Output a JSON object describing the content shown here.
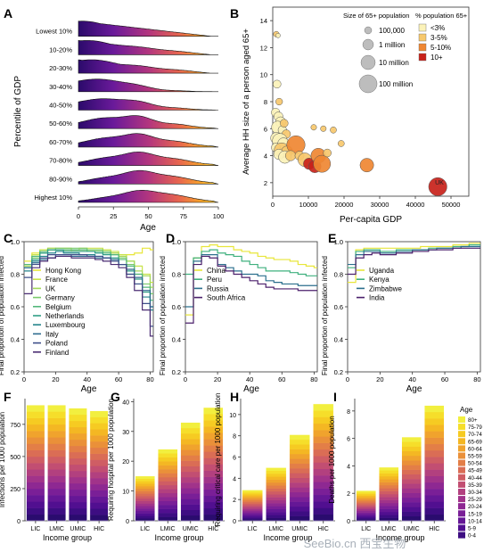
{
  "colors": {
    "ridge_low": "#2b0a6b",
    "ridge_high": "#f9d13a",
    "series_A": [
      "#e8e63a",
      "#c9e34a",
      "#a3d85a",
      "#7acb6b",
      "#53b77a",
      "#2f9e86",
      "#25848c",
      "#2d6a8e",
      "#3e4f8a",
      "#4b2d73"
    ],
    "series_D": [
      "#e8e63a",
      "#3fb07e",
      "#2b6f8d",
      "#4b1f6b"
    ],
    "series_E": [
      "#e8e63a",
      "#3fb07e",
      "#2b6f8d",
      "#4b1f6b"
    ],
    "bubble_cat": [
      "#fbf2b8",
      "#f7c86c",
      "#ef8732",
      "#c8221a"
    ],
    "age_bands": [
      "#2a0c6e",
      "#3d0d82",
      "#510f90",
      "#651796",
      "#7a1f97",
      "#8e2892",
      "#a1338a",
      "#b2407f",
      "#c24e72",
      "#cf5d64",
      "#da6d55",
      "#e37e47",
      "#ea9039",
      "#f0a32d",
      "#f4b723",
      "#f6cb22",
      "#f6de2a",
      "#f2ef3f"
    ]
  },
  "panel_labels": [
    "A",
    "B",
    "C",
    "D",
    "E",
    "F",
    "G",
    "H",
    "I"
  ],
  "panelA": {
    "ylabel": "Percentile of GDP",
    "xlabel": "Age",
    "rows": [
      "Lowest 10%",
      "10-20%",
      "20-30%",
      "30-40%",
      "40-50%",
      "50-60%",
      "60-70%",
      "70-80%",
      "80-90%",
      "Highest 10%"
    ],
    "xticks": [
      "0",
      "25",
      "50",
      "75",
      "100"
    ]
  },
  "panelB": {
    "ylabel": "Average HH size of a person aged 65+",
    "xlabel": "Per-capita GDP",
    "xticks": [
      "0",
      "10000",
      "20000",
      "30000",
      "40000",
      "50000"
    ],
    "yticks": [
      "2",
      "4",
      "6",
      "8",
      "10",
      "12",
      "14"
    ],
    "legend_size_title": "Size of 65+ population",
    "legend_sizes": [
      "100,000",
      "1 million",
      "10 million",
      "100 million"
    ],
    "legend_cat_title": "% population 65+",
    "legend_cats": [
      "<3%",
      "3-5%",
      "5-10%",
      "10+"
    ],
    "uk_label": "UK"
  },
  "panelC": {
    "ylabel": "Final proportion of population infected",
    "xlabel": "Age",
    "xticks": [
      "0",
      "20",
      "40",
      "60",
      "80"
    ],
    "yticks": [
      "0.2",
      "0.4",
      "0.6",
      "0.8",
      "1.0"
    ],
    "legend": [
      "Hong Kong",
      "France",
      "UK",
      "Germany",
      "Belgium",
      "Netherlands",
      "Luxembourg",
      "Italy",
      "Poland",
      "Finland"
    ]
  },
  "panelD": {
    "ylabel": "Final proportion of population infected",
    "xlabel": "Age",
    "xticks": [
      "0",
      "20",
      "40",
      "60",
      "80"
    ],
    "yticks": [
      "0.2",
      "0.4",
      "0.6",
      "0.8",
      "1.0"
    ],
    "legend": [
      "China",
      "Peru",
      "Russia",
      "South Africa"
    ]
  },
  "panelE": {
    "ylabel": "Final proportion of population infected",
    "xlabel": "Age",
    "xticks": [
      "0",
      "20",
      "40",
      "60",
      "80"
    ],
    "yticks": [
      "0.2",
      "0.4",
      "0.6",
      "0.8",
      "1.0"
    ],
    "legend": [
      "Uganda",
      "Kenya",
      "Zimbabwe",
      "India"
    ]
  },
  "panelF": {
    "ylabel": "Infections per 1000 population",
    "xlabel": "Income group",
    "yticks": [
      "0",
      "250",
      "500",
      "750"
    ]
  },
  "panelG": {
    "ylabel": "Requiring hospital per 1000 population",
    "xlabel": "Income group",
    "yticks": [
      "0",
      "10",
      "20",
      "30",
      "40"
    ]
  },
  "panelH": {
    "ylabel": "Requiring critical care per 1000 population",
    "xlabel": "Income group",
    "yticks": [
      "0",
      "2",
      "4",
      "6",
      "8",
      "10"
    ]
  },
  "panelI": {
    "ylabel": "Deaths per 1000 population",
    "xlabel": "Income group",
    "yticks": [
      "0",
      "2",
      "4",
      "6",
      "8"
    ]
  },
  "age_legend": {
    "title": "Age",
    "bands": [
      "80+",
      "75-79",
      "70-74",
      "65-69",
      "60-64",
      "55-59",
      "50-54",
      "45-49",
      "40-44",
      "35-39",
      "30-34",
      "25-29",
      "20-24",
      "15-19",
      "10-14",
      "5-9",
      "0-4"
    ]
  },
  "watermark": "SeeBio.cn 西宝生物",
  "chart_data": [
    {
      "panel": "A",
      "type": "area",
      "title": "",
      "xlabel": "Age",
      "ylabel": "Percentile of GDP",
      "xlim": [
        0,
        100
      ],
      "categories": [
        "Lowest 10%",
        "10-20%",
        "20-30%",
        "30-40%",
        "40-50%",
        "50-60%",
        "60-70%",
        "70-80%",
        "80-90%",
        "Highest 10%"
      ]
    },
    {
      "panel": "B",
      "type": "scatter",
      "xlabel": "Per-capita GDP",
      "ylabel": "Average HH size of a person aged 65+",
      "xlim": [
        0,
        55000
      ],
      "ylim": [
        1,
        15
      ],
      "points": [
        {
          "x": 1000,
          "y": 13.0,
          "cat": 1,
          "s": 1.0
        },
        {
          "x": 1500,
          "y": 12.9,
          "cat": 0,
          "s": 0.8
        },
        {
          "x": 1200,
          "y": 9.3,
          "cat": 0,
          "s": 1.4
        },
        {
          "x": 1800,
          "y": 8.0,
          "cat": 1,
          "s": 1.2
        },
        {
          "x": 800,
          "y": 7.2,
          "cat": 0,
          "s": 1.5
        },
        {
          "x": 1600,
          "y": 6.9,
          "cat": 0,
          "s": 1.6
        },
        {
          "x": 2200,
          "y": 6.5,
          "cat": 0,
          "s": 1.8
        },
        {
          "x": 1400,
          "y": 6.1,
          "cat": 0,
          "s": 2.2
        },
        {
          "x": 2700,
          "y": 5.9,
          "cat": 0,
          "s": 1.5
        },
        {
          "x": 3200,
          "y": 6.4,
          "cat": 1,
          "s": 1.4
        },
        {
          "x": 3800,
          "y": 5.6,
          "cat": 1,
          "s": 1.5
        },
        {
          "x": 1000,
          "y": 5.3,
          "cat": 0,
          "s": 2.0
        },
        {
          "x": 2000,
          "y": 5.1,
          "cat": 0,
          "s": 2.6
        },
        {
          "x": 3000,
          "y": 4.9,
          "cat": 0,
          "s": 2.0
        },
        {
          "x": 900,
          "y": 4.6,
          "cat": 0,
          "s": 1.6
        },
        {
          "x": 2500,
          "y": 4.4,
          "cat": 1,
          "s": 2.6
        },
        {
          "x": 4000,
          "y": 4.3,
          "cat": 1,
          "s": 2.0
        },
        {
          "x": 1700,
          "y": 4.1,
          "cat": 0,
          "s": 1.8
        },
        {
          "x": 3400,
          "y": 3.9,
          "cat": 0,
          "s": 2.2
        },
        {
          "x": 6500,
          "y": 4.8,
          "cat": 2,
          "s": 3.2
        },
        {
          "x": 5000,
          "y": 4.0,
          "cat": 1,
          "s": 1.8
        },
        {
          "x": 7500,
          "y": 4.0,
          "cat": 1,
          "s": 1.6
        },
        {
          "x": 9000,
          "y": 3.7,
          "cat": 1,
          "s": 2.4
        },
        {
          "x": 10200,
          "y": 3.4,
          "cat": 3,
          "s": 2.0
        },
        {
          "x": 11800,
          "y": 3.2,
          "cat": 3,
          "s": 2.2
        },
        {
          "x": 12800,
          "y": 4.0,
          "cat": 2,
          "s": 2.6
        },
        {
          "x": 13800,
          "y": 3.4,
          "cat": 2,
          "s": 3.0
        },
        {
          "x": 15300,
          "y": 4.2,
          "cat": 1,
          "s": 1.4
        },
        {
          "x": 14200,
          "y": 6.0,
          "cat": 1,
          "s": 1.0
        },
        {
          "x": 11500,
          "y": 6.1,
          "cat": 1,
          "s": 1.0
        },
        {
          "x": 17000,
          "y": 5.9,
          "cat": 1,
          "s": 1.1
        },
        {
          "x": 19200,
          "y": 4.9,
          "cat": 1,
          "s": 1.1
        },
        {
          "x": 26400,
          "y": 3.3,
          "cat": 2,
          "s": 2.4
        },
        {
          "x": 46300,
          "y": 1.7,
          "cat": 3,
          "s": 3.2,
          "label": "UK"
        }
      ],
      "legend": [
        "<3%",
        "3-5%",
        "5-10%",
        "10+"
      ]
    },
    {
      "panel": "C",
      "type": "line",
      "xlabel": "Age",
      "ylabel": "Final proportion of population infected",
      "xlim": [
        0,
        82
      ],
      "ylim": [
        0.2,
        1.0
      ],
      "x": [
        0,
        5,
        10,
        15,
        20,
        25,
        30,
        35,
        40,
        45,
        50,
        55,
        60,
        65,
        70,
        75,
        80
      ],
      "series": [
        {
          "name": "Hong Kong",
          "values": [
            0.88,
            0.93,
            0.94,
            0.95,
            0.95,
            0.95,
            0.94,
            0.94,
            0.94,
            0.94,
            0.94,
            0.93,
            0.92,
            0.92,
            0.93,
            0.96,
            0.95
          ]
        },
        {
          "name": "France",
          "values": [
            0.86,
            0.92,
            0.95,
            0.96,
            0.96,
            0.96,
            0.95,
            0.96,
            0.96,
            0.96,
            0.95,
            0.94,
            0.92,
            0.88,
            0.85,
            0.8,
            0.75
          ]
        },
        {
          "name": "UK",
          "values": [
            0.85,
            0.91,
            0.94,
            0.96,
            0.95,
            0.95,
            0.95,
            0.95,
            0.95,
            0.95,
            0.94,
            0.93,
            0.91,
            0.88,
            0.82,
            0.79,
            0.72
          ]
        },
        {
          "name": "Germany",
          "values": [
            0.84,
            0.9,
            0.93,
            0.95,
            0.96,
            0.96,
            0.96,
            0.96,
            0.95,
            0.95,
            0.94,
            0.92,
            0.9,
            0.86,
            0.8,
            0.74,
            0.68
          ]
        },
        {
          "name": "Belgium",
          "values": [
            0.86,
            0.91,
            0.94,
            0.95,
            0.95,
            0.95,
            0.95,
            0.95,
            0.94,
            0.94,
            0.93,
            0.92,
            0.89,
            0.85,
            0.8,
            0.72,
            0.64
          ]
        },
        {
          "name": "Netherlands",
          "values": [
            0.84,
            0.89,
            0.93,
            0.95,
            0.95,
            0.94,
            0.94,
            0.94,
            0.94,
            0.93,
            0.92,
            0.9,
            0.86,
            0.82,
            0.77,
            0.69,
            0.6
          ]
        },
        {
          "name": "Luxembourg",
          "values": [
            0.82,
            0.88,
            0.91,
            0.93,
            0.94,
            0.93,
            0.93,
            0.92,
            0.92,
            0.91,
            0.9,
            0.89,
            0.86,
            0.8,
            0.74,
            0.66,
            0.58
          ]
        },
        {
          "name": "Italy",
          "values": [
            0.84,
            0.87,
            0.89,
            0.9,
            0.92,
            0.92,
            0.91,
            0.91,
            0.91,
            0.9,
            0.9,
            0.89,
            0.86,
            0.83,
            0.78,
            0.7,
            0.6
          ]
        },
        {
          "name": "Poland",
          "values": [
            0.78,
            0.86,
            0.9,
            0.92,
            0.92,
            0.92,
            0.92,
            0.92,
            0.91,
            0.91,
            0.9,
            0.88,
            0.86,
            0.8,
            0.74,
            0.62,
            0.48
          ]
        },
        {
          "name": "Finland",
          "values": [
            0.68,
            0.84,
            0.88,
            0.9,
            0.91,
            0.91,
            0.9,
            0.9,
            0.9,
            0.89,
            0.88,
            0.86,
            0.84,
            0.78,
            0.7,
            0.58,
            0.42
          ]
        }
      ]
    },
    {
      "panel": "D",
      "type": "line",
      "xlabel": "Age",
      "ylabel": "Final proportion of population infected",
      "xlim": [
        0,
        82
      ],
      "ylim": [
        0.2,
        1.0
      ],
      "x": [
        0,
        5,
        10,
        15,
        20,
        25,
        30,
        35,
        40,
        45,
        50,
        55,
        60,
        65,
        70,
        75,
        80
      ],
      "series": [
        {
          "name": "China",
          "values": [
            0.55,
            0.9,
            0.97,
            0.98,
            0.97,
            0.97,
            0.95,
            0.94,
            0.93,
            0.91,
            0.9,
            0.89,
            0.89,
            0.88,
            0.86,
            0.85,
            0.84
          ]
        },
        {
          "name": "Peru",
          "values": [
            0.8,
            0.9,
            0.94,
            0.95,
            0.93,
            0.92,
            0.91,
            0.88,
            0.86,
            0.84,
            0.82,
            0.82,
            0.82,
            0.81,
            0.8,
            0.79,
            0.79
          ]
        },
        {
          "name": "Russia",
          "values": [
            0.6,
            0.88,
            0.92,
            0.92,
            0.86,
            0.84,
            0.82,
            0.8,
            0.8,
            0.79,
            0.76,
            0.75,
            0.74,
            0.74,
            0.73,
            0.73,
            0.73
          ]
        },
        {
          "name": "South Africa",
          "values": [
            0.5,
            0.86,
            0.91,
            0.9,
            0.85,
            0.82,
            0.8,
            0.78,
            0.76,
            0.74,
            0.72,
            0.71,
            0.71,
            0.71,
            0.7,
            0.7,
            0.7
          ]
        }
      ]
    },
    {
      "panel": "E",
      "type": "line",
      "xlabel": "Age",
      "ylabel": "Final proportion of population infected",
      "xlim": [
        0,
        82
      ],
      "ylim": [
        0.2,
        1.0
      ],
      "x": [
        0,
        5,
        10,
        15,
        20,
        25,
        30,
        35,
        40,
        45,
        50,
        55,
        60,
        65,
        70,
        75,
        80
      ],
      "series": [
        {
          "name": "Uganda",
          "values": [
            0.75,
            0.95,
            0.96,
            0.96,
            0.96,
            0.96,
            0.96,
            0.96,
            0.96,
            0.97,
            0.97,
            0.97,
            0.97,
            0.98,
            0.98,
            0.99,
            0.99
          ]
        },
        {
          "name": "Kenya",
          "values": [
            0.84,
            0.94,
            0.95,
            0.95,
            0.94,
            0.94,
            0.95,
            0.95,
            0.95,
            0.95,
            0.96,
            0.96,
            0.96,
            0.97,
            0.97,
            0.98,
            0.98
          ]
        },
        {
          "name": "Zimbabwe",
          "values": [
            0.86,
            0.92,
            0.94,
            0.94,
            0.93,
            0.93,
            0.94,
            0.94,
            0.95,
            0.95,
            0.95,
            0.96,
            0.96,
            0.96,
            0.97,
            0.97,
            0.97
          ]
        },
        {
          "name": "India",
          "values": [
            0.8,
            0.9,
            0.92,
            0.93,
            0.92,
            0.92,
            0.93,
            0.93,
            0.94,
            0.94,
            0.95,
            0.95,
            0.95,
            0.96,
            0.96,
            0.96,
            0.96
          ]
        }
      ]
    },
    {
      "panel": "F",
      "type": "bar",
      "categories": [
        "LIC",
        "LMIC",
        "UMIC",
        "HIC"
      ],
      "values": [
        900,
        900,
        875,
        855
      ],
      "ylim": [
        0,
        950
      ],
      "ylabel": "Infections per 1000 population",
      "xlabel": "Income group"
    },
    {
      "panel": "G",
      "type": "bar",
      "categories": [
        "LIC",
        "LMIC",
        "UMIC",
        "HIC"
      ],
      "values": [
        15,
        24,
        33,
        38
      ],
      "ylim": [
        0,
        41
      ],
      "ylabel": "Requiring hospital per 1000 population",
      "xlabel": "Income group"
    },
    {
      "panel": "H",
      "type": "bar",
      "categories": [
        "LIC",
        "LMIC",
        "UMIC",
        "HIC"
      ],
      "values": [
        2.9,
        5.0,
        8.1,
        11.0
      ],
      "ylim": [
        0,
        11.5
      ],
      "ylabel": "Requiring critical care per 1000 population",
      "xlabel": "Income group"
    },
    {
      "panel": "I",
      "type": "bar",
      "categories": [
        "LIC",
        "LMIC",
        "UMIC",
        "HIC"
      ],
      "values": [
        2.2,
        3.9,
        6.1,
        8.4
      ],
      "ylim": [
        0,
        8.9
      ],
      "ylabel": "Deaths per 1000 population",
      "xlabel": "Income group"
    }
  ]
}
